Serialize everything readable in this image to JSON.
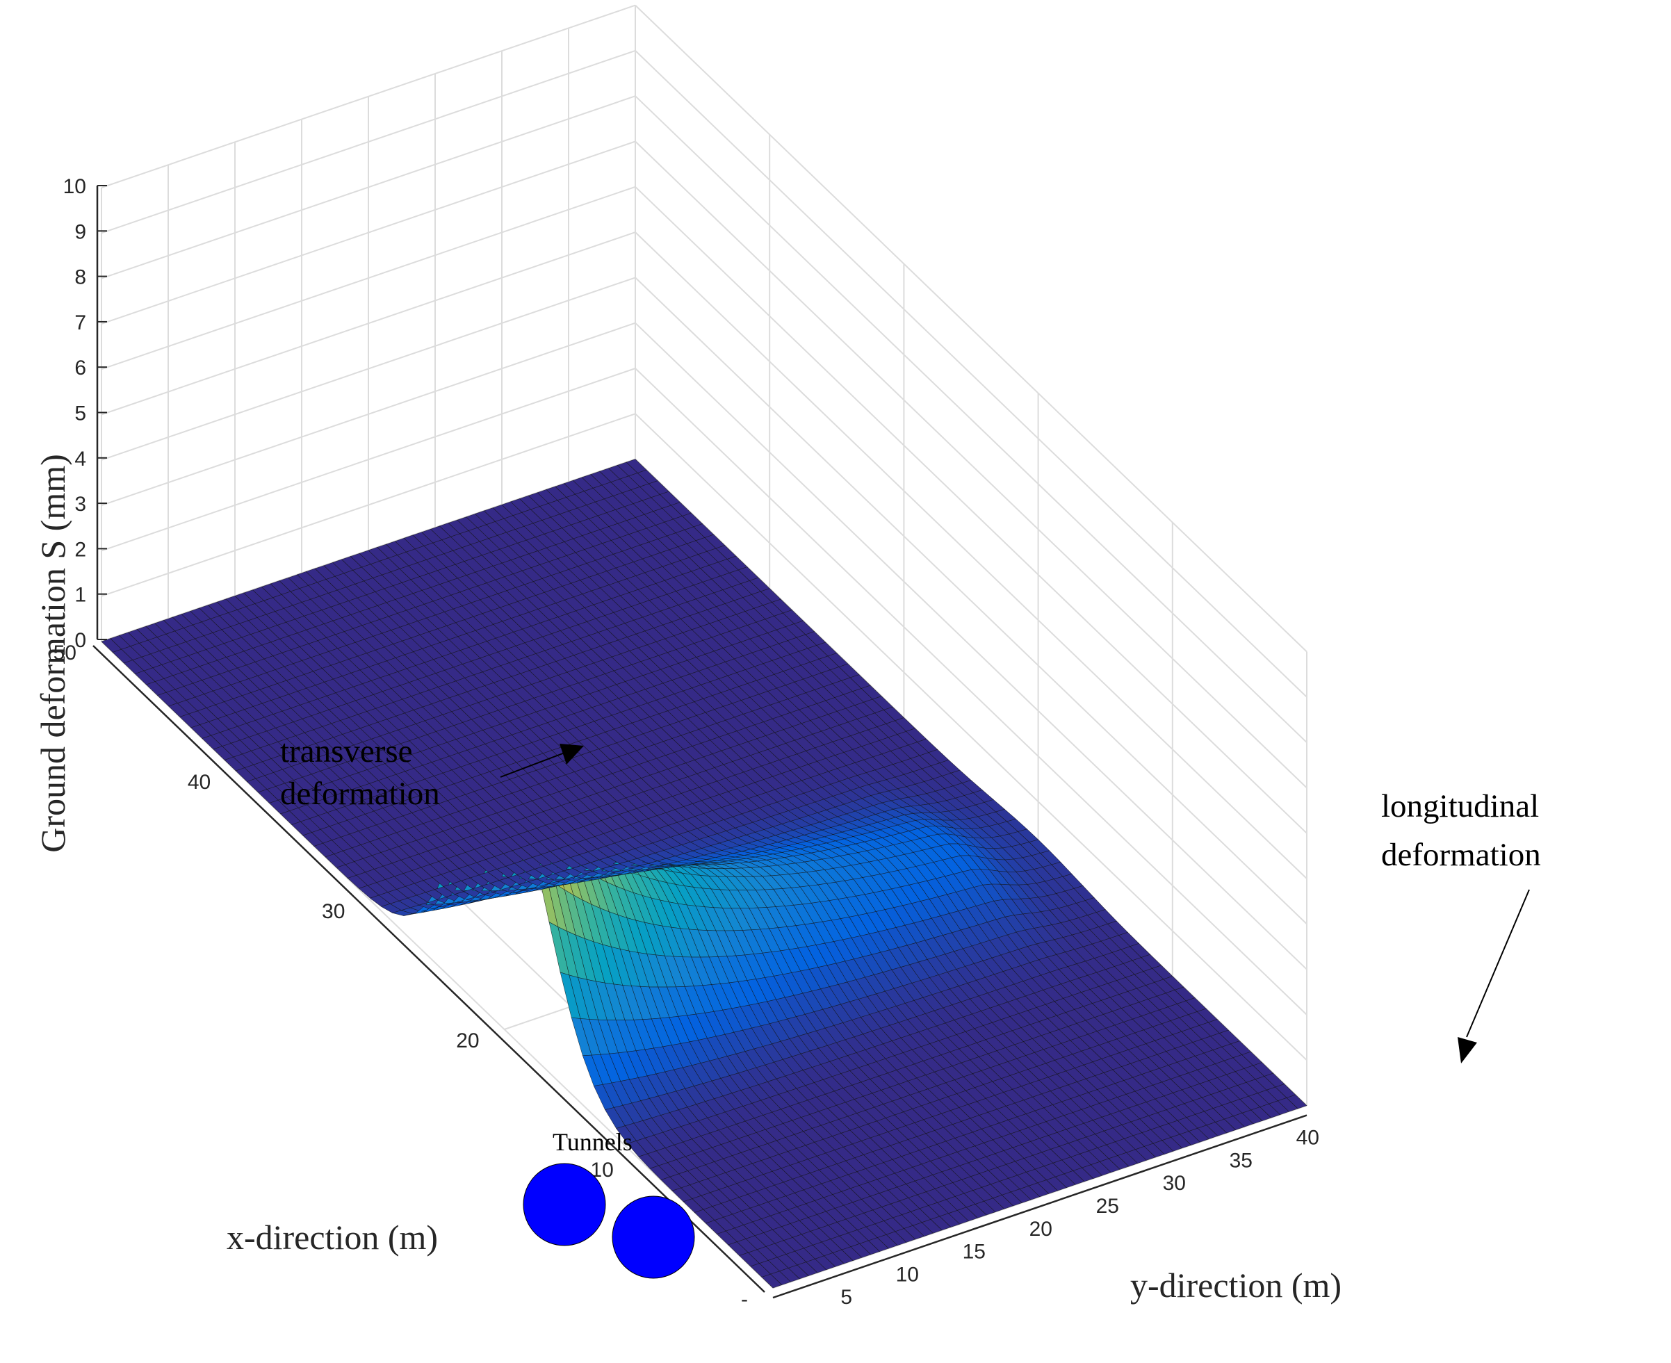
{
  "chart_data": {
    "type": "surface",
    "zlabel": "Ground deformation S (mm)",
    "xlabel": "x-direction (m)",
    "ylabel": "y-direction (m)",
    "zlim": [
      0,
      10
    ],
    "xlim": [
      0,
      50
    ],
    "ylim": [
      0,
      40
    ],
    "z_ticks": [
      "0",
      "1",
      "2",
      "3",
      "4",
      "5",
      "6",
      "7",
      "8",
      "9",
      "10"
    ],
    "x_ticks": [
      "-",
      "10",
      "20",
      "30",
      "40",
      "50"
    ],
    "y_ticks": [
      "5",
      "10",
      "15",
      "20",
      "25",
      "30",
      "35",
      "40"
    ],
    "grid": true,
    "colormap": "parula",
    "peak_value": 5.7,
    "peak_location": {
      "x": 20,
      "y": 0
    },
    "annotations": {
      "transverse": [
        "transverse",
        "deformation"
      ],
      "longitudinal": [
        "longitudinal",
        "deformation"
      ],
      "tunnels": "Tunnels"
    },
    "colors": {
      "tunnel_fill": "#0000ff",
      "flat_surface": "#2c2c6e",
      "grid": "#dcdcdc",
      "mesh_line": "#111111"
    }
  }
}
